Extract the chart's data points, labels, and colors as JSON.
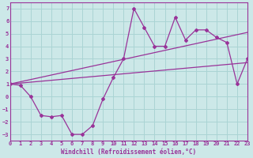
{
  "xlabel": "Windchill (Refroidissement éolien,°C)",
  "bg_color": "#cce8e8",
  "grid_color": "#aad4d4",
  "line_color": "#993399",
  "x_data": [
    0,
    1,
    2,
    3,
    4,
    5,
    6,
    7,
    8,
    9,
    10,
    11,
    12,
    13,
    14,
    15,
    16,
    17,
    18,
    19,
    20,
    21,
    22,
    23
  ],
  "y_data": [
    1.0,
    0.9,
    0.0,
    -1.5,
    -1.6,
    -1.5,
    -3.0,
    -3.0,
    -2.3,
    -0.2,
    1.5,
    3.0,
    7.0,
    5.5,
    4.0,
    4.0,
    6.3,
    4.5,
    5.3,
    5.3,
    4.7,
    4.3,
    1.0,
    3.0
  ],
  "reg_line1_x": [
    0,
    23
  ],
  "reg_line1_y": [
    1.0,
    2.7
  ],
  "reg_line2_x": [
    0,
    23
  ],
  "reg_line2_y": [
    1.0,
    5.1
  ],
  "xlim": [
    0,
    23
  ],
  "ylim": [
    -3.5,
    7.5
  ],
  "yticks": [
    -3,
    -2,
    -1,
    0,
    1,
    2,
    3,
    4,
    5,
    6,
    7
  ],
  "xticks": [
    0,
    1,
    2,
    3,
    4,
    5,
    6,
    7,
    8,
    9,
    10,
    11,
    12,
    13,
    14,
    15,
    16,
    17,
    18,
    19,
    20,
    21,
    22,
    23
  ],
  "tick_fontsize": 5.0,
  "xlabel_fontsize": 5.5
}
